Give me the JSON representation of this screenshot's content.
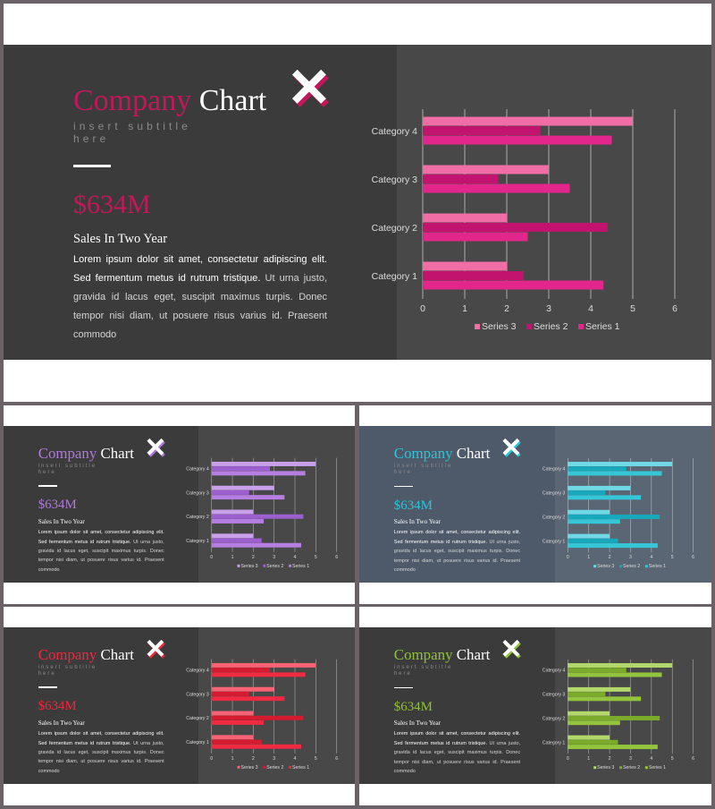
{
  "slides": [
    {
      "id": "main",
      "accent": "#c2185b",
      "series_colors": [
        "#f06da6",
        "#c2136f",
        "#e3268b"
      ],
      "background": "#3b3b3b",
      "panel_tint": "rgba(255,255,255,0.07)",
      "title_colored": "Company",
      "title_plain": "Chart",
      "subtitle": "insert subtitle here",
      "amount": "$634M",
      "heading": "Sales In Two Year",
      "body_lead": "Lorem ipsum dolor sit amet, consectetur adipiscing elit. Sed fermentum metus id rutrum tristique.",
      "body_rest": " Ut urna justo, gravida id lacus eget, suscipit maximus turpis. Donec tempor nisi diam, ut posuere risus varius id. Praesent commodo"
    },
    {
      "id": "purple",
      "accent": "#b07ad9",
      "series_colors": [
        "#c9a0ea",
        "#9d5fcf",
        "#b57ee0"
      ],
      "background": "#3b3b3b",
      "panel_tint": "rgba(255,255,255,0.07)",
      "title_colored": "Company",
      "title_plain": "Chart",
      "subtitle": "insert subtitle here",
      "amount": "$634M",
      "heading": "Sales In Two Year",
      "body_lead": "Lorem ipsum dolor sit amet, consectetur adipiscing elit. Sed fermentum metus id rutrum tristique.",
      "body_rest": " Ut urna justo, gravida id lacus eget, suscipit maximus turpis. Donec tempor nisi diam, ut posuere risus varius id. Praesent commodo"
    },
    {
      "id": "teal",
      "accent": "#2ec4d6",
      "series_colors": [
        "#6fdae6",
        "#17a9bb",
        "#35c6d8"
      ],
      "background": "#4e5a6a",
      "panel_tint": "rgba(255,255,255,0.08)",
      "title_colored": "Company",
      "title_plain": "Chart",
      "subtitle": "insert subtitle here",
      "amount": "$634M",
      "heading": "Sales In Two Year",
      "body_lead": "Lorem ipsum dolor sit amet, consectetur adipiscing elit. Sed fermentum metus id rutrum tristique.",
      "body_rest": " Ut urna justo, gravida id lacus eget, suscipit maximus turpis. Donec tempor nisi diam, ut posuere risus varius id. Praesent commodo"
    },
    {
      "id": "red",
      "accent": "#f0283e",
      "series_colors": [
        "#f76274",
        "#d61a2f",
        "#ef2a41"
      ],
      "background": "#3b3b3b",
      "panel_tint": "rgba(255,255,255,0.07)",
      "title_colored": "Company",
      "title_plain": "Chart",
      "subtitle": "insert subtitle here",
      "amount": "$634M",
      "heading": "Sales In Two Year",
      "body_lead": "Lorem ipsum dolor sit amet, consectetur adipiscing elit. Sed fermentum metus id rutrum tristique.",
      "body_rest": " Ut urna justo, gravida id lacus eget, suscipit maximus turpis. Donec tempor nisi diam, ut posuere risus varius id. Praesent commodo"
    },
    {
      "id": "green",
      "accent": "#8fc23a",
      "series_colors": [
        "#b2d86c",
        "#7aab2a",
        "#92c43e"
      ],
      "background": "#3b3b3b",
      "panel_tint": "rgba(255,255,255,0.07)",
      "title_colored": "Company",
      "title_plain": "Chart",
      "subtitle": "insert subtitle here",
      "amount": "$634M",
      "heading": "Sales In Two Year",
      "body_lead": "Lorem ipsum dolor sit amet, consectetur adipiscing elit. Sed fermentum metus id rutrum tristique.",
      "body_rest": " Ut urna justo, gravida id lacus eget, suscipit maximus turpis. Donec tempor nisi diam, ut posuere risus varius id. Praesent commodo"
    }
  ],
  "chart_data": {
    "type": "bar",
    "orientation": "horizontal",
    "categories": [
      "Category 1",
      "Category 2",
      "Category 3",
      "Category 4"
    ],
    "series": [
      {
        "name": "Series 1",
        "values": [
          4.3,
          2.5,
          3.5,
          4.5
        ]
      },
      {
        "name": "Series 2",
        "values": [
          2.4,
          4.4,
          1.8,
          2.8
        ]
      },
      {
        "name": "Series 3",
        "values": [
          2.0,
          2.0,
          3.0,
          5.0
        ]
      }
    ],
    "xlim": [
      0,
      6
    ],
    "xticks": [
      "0",
      "1",
      "2",
      "3",
      "4",
      "5",
      "6"
    ],
    "grid": true,
    "legend_position": "bottom",
    "legend_order": [
      "Series 3",
      "Series 2",
      "Series 1"
    ]
  },
  "icon": "x-mark-icon"
}
